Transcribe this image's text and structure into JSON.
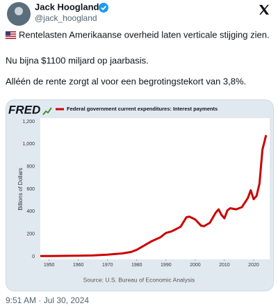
{
  "tweet": {
    "name": "Jack Hoogland",
    "handle": "@jack_hoogland",
    "lines": [
      "Rentelasten Amerikaanse overheid laten verticale stijging zien.",
      "Nu bijna $1100 miljard op jaarbasis.",
      "Alléén de rente zorgt al voor een begrotingstekort van 3,8%."
    ],
    "timestamp": "9:51 AM · Jul 30, 2024"
  },
  "chart_data": {
    "type": "line",
    "logo": "FRED",
    "ylabel": "Billions of Dollars",
    "source": "Source: U.S. Bureau of Economic Analysis",
    "x": [
      1947,
      1950,
      1955,
      1960,
      1965,
      1970,
      1975,
      1978,
      1980,
      1982,
      1985,
      1988,
      1990,
      1992,
      1995,
      1997,
      1998,
      2000,
      2002,
      2003,
      2005,
      2007,
      2008,
      2009,
      2010,
      2011,
      2012,
      2014,
      2016,
      2018,
      2019,
      2020,
      2021,
      2022,
      2023,
      2024.25
    ],
    "series": [
      {
        "name": "Federal government current expenditures: Interest payments",
        "color": "#cc0000",
        "values": [
          4.5,
          5,
          6,
          8,
          10,
          17,
          28,
          40,
          60,
          90,
          135,
          170,
          210,
          225,
          265,
          350,
          355,
          330,
          275,
          270,
          300,
          390,
          420,
          370,
          340,
          410,
          430,
          420,
          440,
          520,
          590,
          510,
          540,
          650,
          950,
          1080
        ]
      }
    ],
    "xlim": [
      1947,
      2025
    ],
    "ylim": [
      0,
      1200
    ],
    "xticks": [
      1950,
      1960,
      1970,
      1980,
      1990,
      2000,
      2010,
      2020
    ],
    "yticks": [
      0,
      200,
      400,
      600,
      800,
      {
        "value": 1000,
        "label": "1,000"
      },
      {
        "value": 1200,
        "label": "1,200"
      }
    ],
    "grid": false
  }
}
